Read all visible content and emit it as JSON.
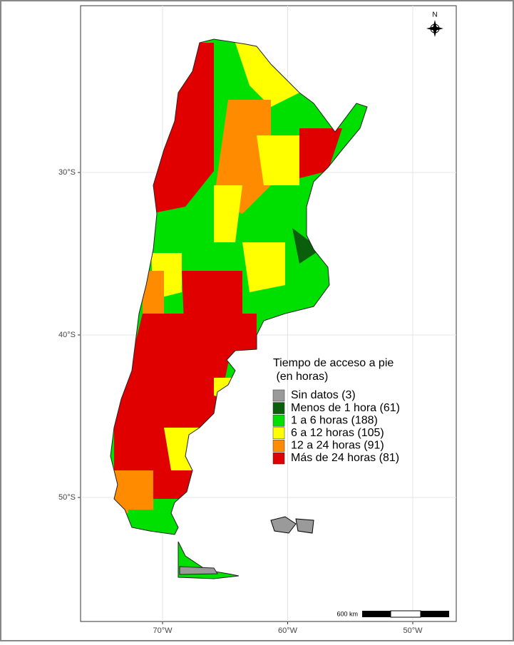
{
  "map": {
    "north_label": "N",
    "scale_label": "600 km",
    "lat_ticks": [
      {
        "value": -30,
        "label": "30°S"
      },
      {
        "value": -40,
        "label": "40°S"
      },
      {
        "value": -50,
        "label": "50°S"
      }
    ],
    "lon_ticks": [
      {
        "value": -70,
        "label": "70°W"
      },
      {
        "value": -60,
        "label": "60°W"
      },
      {
        "value": -50,
        "label": "50°W"
      }
    ],
    "legend": {
      "title_lines": [
        "Tiempo de acceso a pie",
        " (en horas)"
      ],
      "items": [
        {
          "label": "Sin datos (3)",
          "color": "#9a9a9a"
        },
        {
          "label": "Menos de 1 hora (61)",
          "color": "#0b5e0b"
        },
        {
          "label": "1 a 6 horas (188)",
          "color": "#00e000"
        },
        {
          "label": "6 a 12 horas (105)",
          "color": "#ffff00"
        },
        {
          "label": "12 a 24 horas (91)",
          "color": "#ff8c00"
        },
        {
          "label": "Más de 24 horas (81)",
          "color": "#e00000"
        }
      ]
    }
  }
}
